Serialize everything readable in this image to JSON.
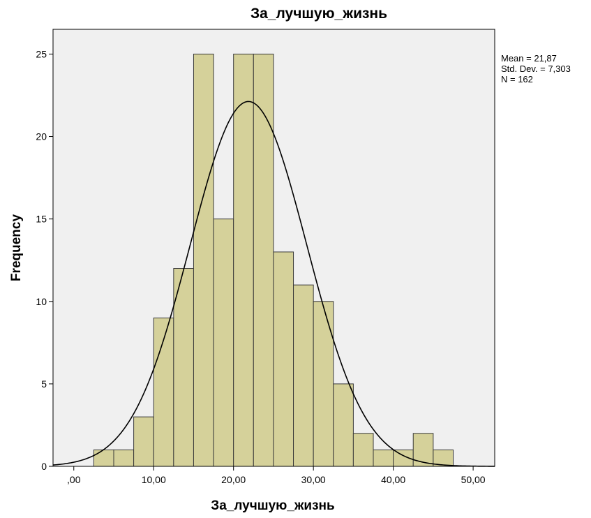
{
  "chart_data": {
    "type": "bar",
    "title": "За_лучшую_жизнь",
    "xlabel": "За_лучшую_жизнь",
    "ylabel": "Frequency",
    "xlim": [
      -2.6,
      52.7
    ],
    "ylim": [
      0,
      26.5
    ],
    "bin_width": 2.5,
    "bins": [
      {
        "start": 2.5,
        "end": 5.0,
        "count": 1
      },
      {
        "start": 5.0,
        "end": 7.5,
        "count": 1
      },
      {
        "start": 7.5,
        "end": 10.0,
        "count": 3
      },
      {
        "start": 10.0,
        "end": 12.5,
        "count": 9
      },
      {
        "start": 12.5,
        "end": 15.0,
        "count": 12
      },
      {
        "start": 15.0,
        "end": 17.5,
        "count": 25
      },
      {
        "start": 17.5,
        "end": 20.0,
        "count": 15
      },
      {
        "start": 20.0,
        "end": 22.5,
        "count": 25
      },
      {
        "start": 22.5,
        "end": 25.0,
        "count": 25
      },
      {
        "start": 25.0,
        "end": 27.5,
        "count": 13
      },
      {
        "start": 27.5,
        "end": 30.0,
        "count": 11
      },
      {
        "start": 30.0,
        "end": 32.5,
        "count": 10
      },
      {
        "start": 32.5,
        "end": 35.0,
        "count": 5
      },
      {
        "start": 35.0,
        "end": 37.5,
        "count": 2
      },
      {
        "start": 37.5,
        "end": 40.0,
        "count": 1
      },
      {
        "start": 40.0,
        "end": 42.5,
        "count": 1
      },
      {
        "start": 42.5,
        "end": 45.0,
        "count": 2
      },
      {
        "start": 45.0,
        "end": 47.5,
        "count": 1
      }
    ],
    "x_ticks": [
      {
        "value": 0,
        "label": ",00"
      },
      {
        "value": 10,
        "label": "10,00"
      },
      {
        "value": 20,
        "label": "20,00"
      },
      {
        "value": 30,
        "label": "30,00"
      },
      {
        "value": 40,
        "label": "40,00"
      },
      {
        "value": 50,
        "label": "50,00"
      }
    ],
    "y_ticks": [
      {
        "value": 0,
        "label": "0"
      },
      {
        "value": 5,
        "label": "5"
      },
      {
        "value": 10,
        "label": "10"
      },
      {
        "value": 15,
        "label": "15"
      },
      {
        "value": 20,
        "label": "20"
      },
      {
        "value": 25,
        "label": "25"
      }
    ],
    "normal_curve": {
      "mean": 21.87,
      "std_dev": 7.303,
      "n": 162
    },
    "stats_box": {
      "mean_text": "Mean = 21,87",
      "std_text": "Std. Dev. = 7,303",
      "n_text": "N = 162"
    },
    "grid": false,
    "colors": {
      "bar_fill": "#d5d19a",
      "bar_stroke": "#3a3a3a",
      "plot_background": "#f0f0f0",
      "curve": "#000000"
    }
  }
}
